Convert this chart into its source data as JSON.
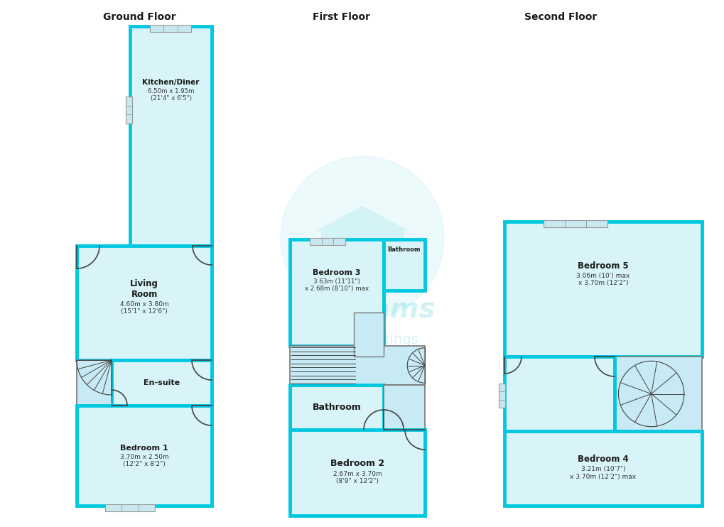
{
  "bg_color": "#ffffff",
  "wall_color": "#00c8e0",
  "fill_color": "#d8f4f8",
  "wall_lw": 3.5,
  "title": "Ground Floor",
  "title2": "First Floor",
  "title3": "Second Floor",
  "rooms": {
    "kitchen": {
      "label": "Kitchen/Diner",
      "sublabel": "6.50m x 1.95m\n(21'4\" x 6'5\")"
    },
    "living": {
      "label": "Living\nRoom",
      "sublabel": "4.60m x 3.80m\n(15'1\" x 12'6\")"
    },
    "ensuite": {
      "label": "En-suite"
    },
    "bed1": {
      "label": "Bedroom 1",
      "sublabel": "3.70m x 2.50m\n(12'2\" x 8'2\")"
    },
    "bed2": {
      "label": "Bedroom 2",
      "sublabel": "2.67m x 3.70m\n(8'9\" x 12'2\")"
    },
    "bed3": {
      "label": "Bedroom 3",
      "sublabel": "3.63m (11'11\")\nx 2.68m (8'10\") max"
    },
    "bath_ff": {
      "label": "Bathroom"
    },
    "bath_sm": {
      "label": "Bathroom"
    },
    "bed4": {
      "label": "Bedroom 4",
      "sublabel": "3.21m (10'7\")\nx 3.70m (12'2\") max"
    },
    "bed5": {
      "label": "Bedroom 5",
      "sublabel": "3.06m (10') max\nx 3.70m (12'2\")"
    }
  }
}
